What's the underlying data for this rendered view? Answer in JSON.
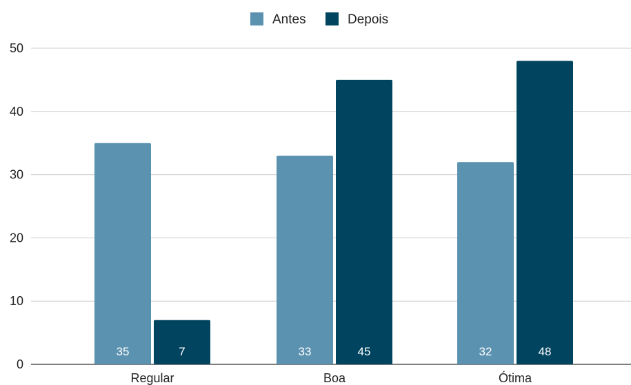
{
  "chart_data": {
    "type": "bar",
    "title": "",
    "xlabel": "",
    "ylabel": "",
    "categories": [
      "Regular",
      "Boa",
      "Ótima"
    ],
    "series": [
      {
        "name": "Antes",
        "values": [
          35,
          33,
          32
        ],
        "color": "#5b92b0"
      },
      {
        "name": "Depois",
        "values": [
          7,
          45,
          48
        ],
        "color": "#00445f"
      }
    ],
    "ylim": [
      0,
      50
    ],
    "yticks": [
      0,
      10,
      20,
      30,
      40,
      50
    ],
    "grid": true,
    "legend_position": "top-center",
    "data_labels": true
  }
}
